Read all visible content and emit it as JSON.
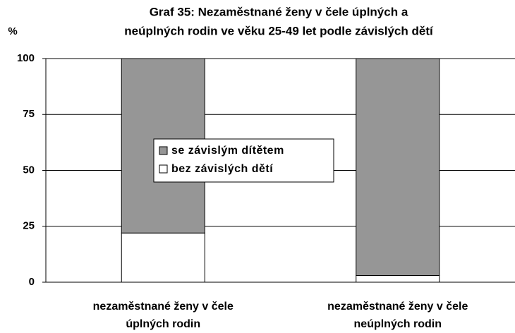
{
  "chart_data": {
    "type": "stacked_bar",
    "title": [
      "Graf 35: Nezaměstnané ženy v čele úplných a",
      "neúplných rodin ve věku 25-49 let podle závislých dětí"
    ],
    "y_label": "%",
    "categories": [
      "nezaměstnané ženy v čele úplných rodin",
      "nezaměstnané ženy v čele neúplných rodin"
    ],
    "series": [
      {
        "name": "bez závislých dětí",
        "color": "#ffffff",
        "values": [
          22,
          3
        ]
      },
      {
        "name": "se závislým dítětem",
        "color": "#969696",
        "values": [
          78,
          97
        ]
      }
    ],
    "ylim": [
      0,
      100
    ],
    "yticks": [
      0,
      25,
      50,
      75,
      100
    ],
    "grid": true,
    "legend": "center"
  }
}
